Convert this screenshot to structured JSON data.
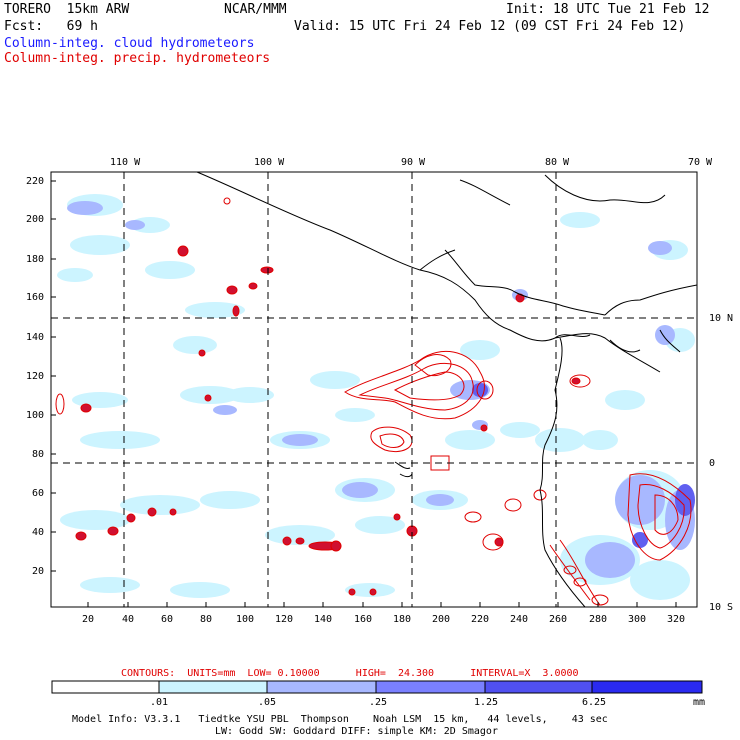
{
  "header": {
    "model_line": "TORERO  15km ARW",
    "org": "NCAR/MMM",
    "init": "Init: 18 UTC Tue 21 Feb 12",
    "fcst": "Fcst:   69 h",
    "valid": "Valid: 15 UTC Fri 24 Feb 12 (09 CST Fri 24 Feb 12)",
    "legend_cloud": "Column-integ. cloud hydrometeors",
    "legend_precip": "Column-integ. precip. hydrometeors",
    "legend_cloud_color": "#1a1aff",
    "legend_precip_color": "#e00000"
  },
  "map": {
    "lon_labels": [
      "110 W",
      "100 W",
      "90 W",
      "80 W",
      "70 W"
    ],
    "lat_labels": [
      "10 N",
      "0",
      "10 S"
    ],
    "y_ticks": [
      "220",
      "200",
      "180",
      "160",
      "140",
      "120",
      "100",
      "80",
      "60",
      "40",
      "20"
    ],
    "x_ticks": [
      "20",
      "40",
      "60",
      "80",
      "100",
      "120",
      "140",
      "160",
      "180",
      "200",
      "220",
      "240",
      "260",
      "280",
      "300",
      "320"
    ]
  },
  "contours": {
    "text": "CONTOURS:  UNITS=mm  LOW= 0.10000      HIGH=  24.300      INTERVAL=X  3.0000"
  },
  "colorbar": {
    "labels": [
      ".01",
      ".05",
      ".25",
      "1.25",
      "6.25",
      "mm"
    ],
    "colors": [
      "#ffffff",
      "#ccf4ff",
      "#a8b8ff",
      "#7a80ff",
      "#5050f0",
      "#2a2af0"
    ]
  },
  "footer": {
    "line1": "Model Info: V3.3.1   Tiedtke YSU PBL  Thompson    Noah LSM  15 km,   44 levels,    43 sec",
    "line2": "LW: Godd SW: Goddard DIFF: simple KM: 2D Smagor"
  }
}
